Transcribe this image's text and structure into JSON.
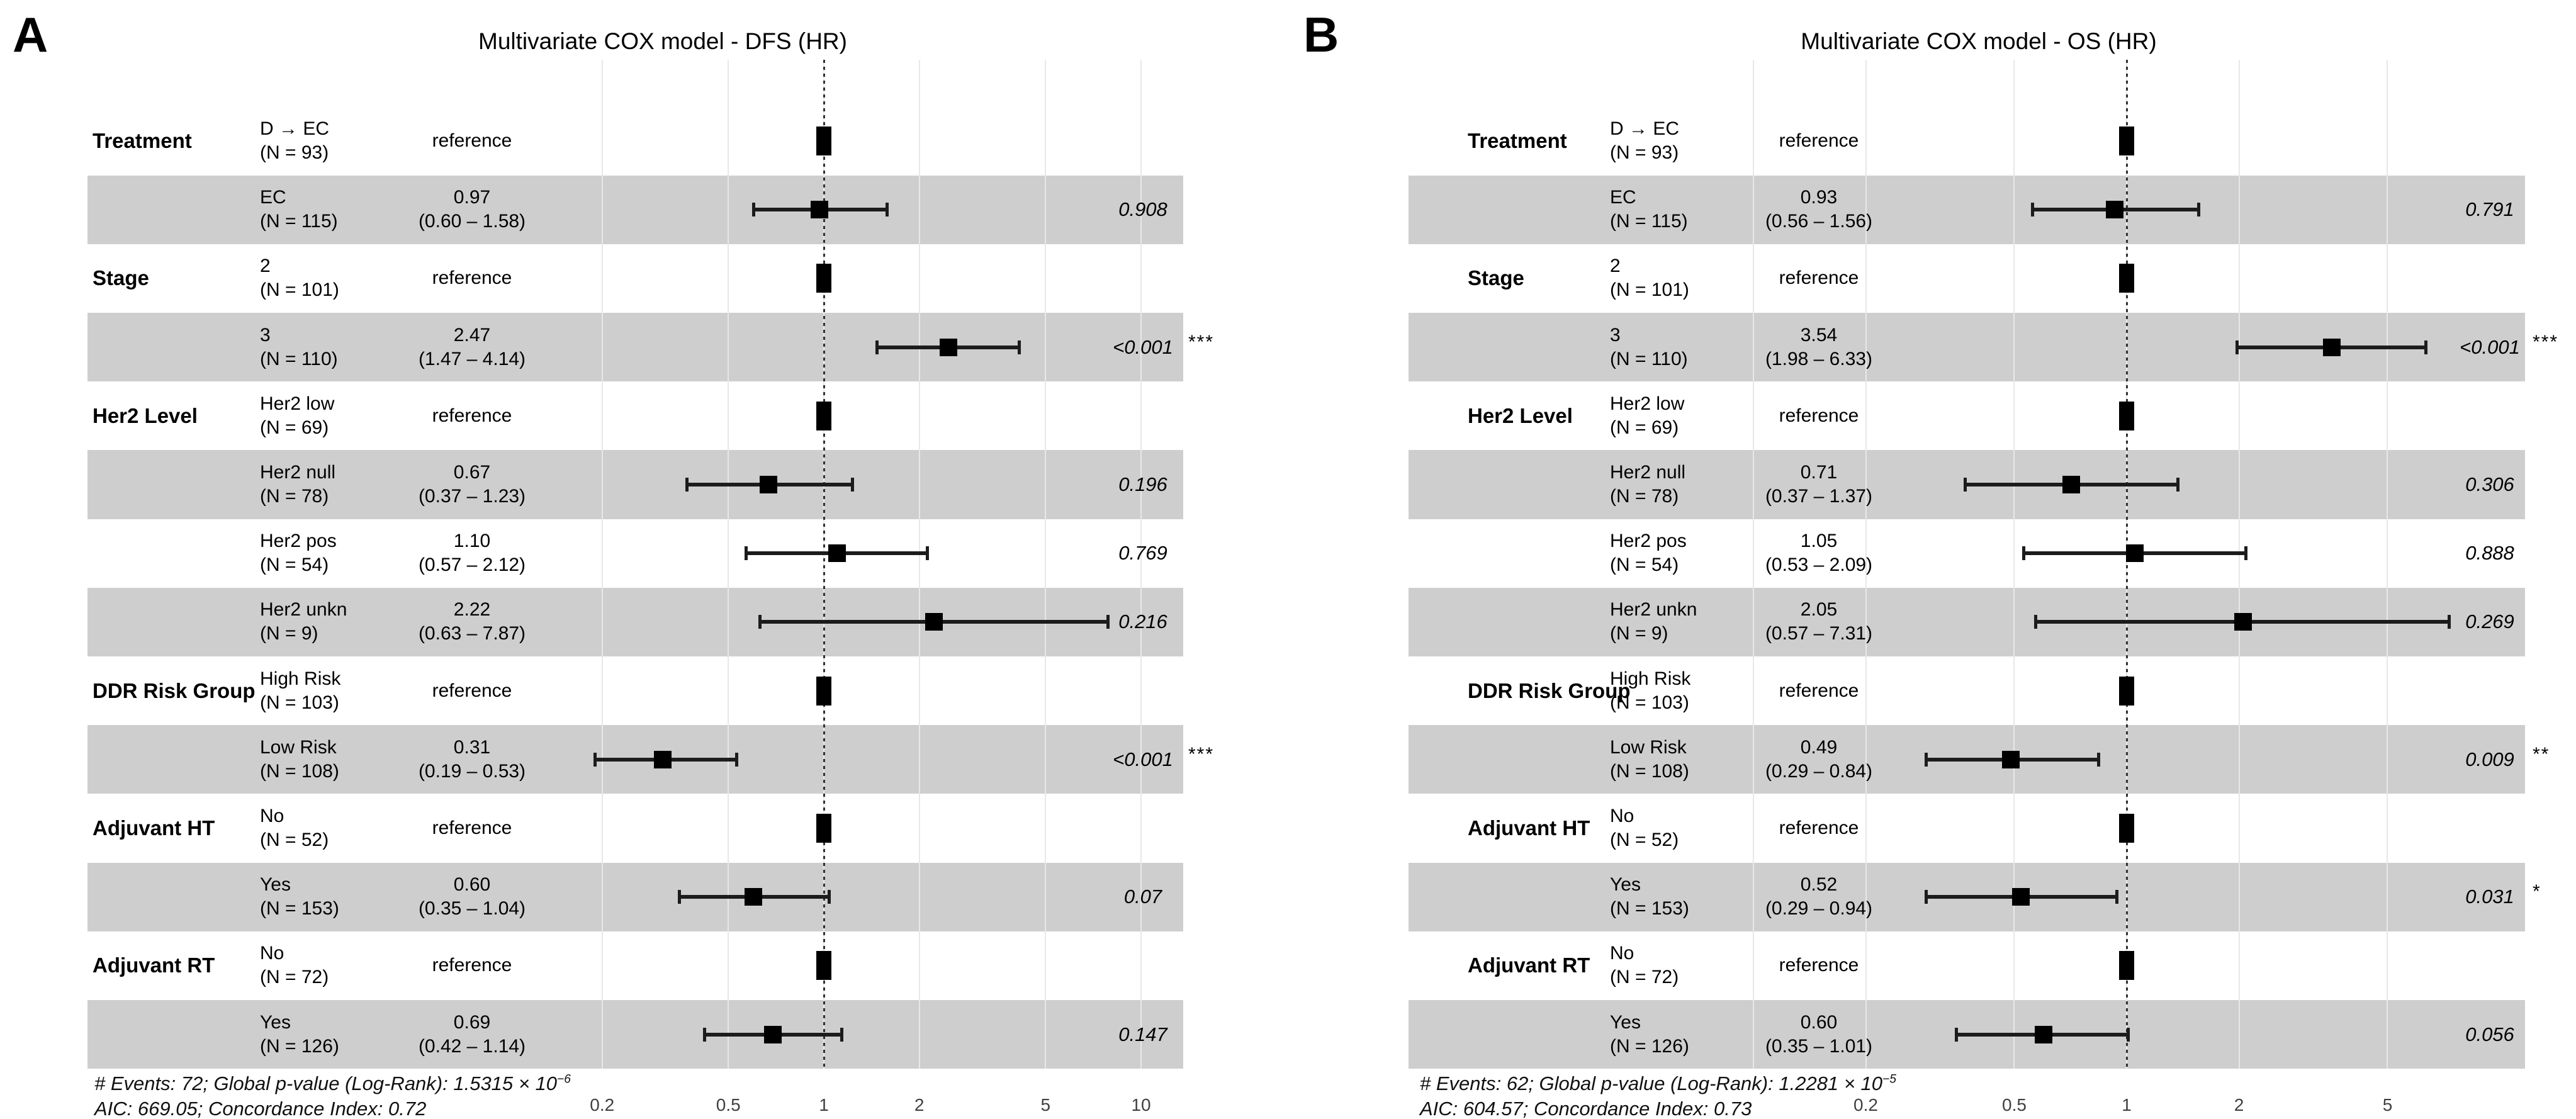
{
  "chart_data": [
    {
      "type": "forest",
      "panel_label": "A",
      "title": "Multivariate COX model - DFS (HR)",
      "x_scale": "log",
      "reference_line": 1,
      "x_ticks": [
        0.2,
        0.5,
        1,
        2,
        5,
        10
      ],
      "unlabeled_gridlines": [],
      "reference_text": "reference",
      "rows": [
        {
          "variable": "Treatment",
          "level": "D → EC",
          "n": "(N = 93)",
          "ref": true,
          "shaded": false
        },
        {
          "variable": "",
          "level": "EC",
          "n": "(N = 115)",
          "est": "0.97",
          "ci": "(0.60 – 1.58)",
          "hr": 0.97,
          "lo": 0.6,
          "hi": 1.58,
          "p": "0.908",
          "stars": "",
          "shaded": true
        },
        {
          "variable": "Stage",
          "level": "2",
          "n": "(N = 101)",
          "ref": true,
          "shaded": false
        },
        {
          "variable": "",
          "level": "3",
          "n": "(N = 110)",
          "est": "2.47",
          "ci": "(1.47 – 4.14)",
          "hr": 2.47,
          "lo": 1.47,
          "hi": 4.14,
          "p": "<0.001",
          "stars": "***",
          "shaded": true
        },
        {
          "variable": "Her2 Level",
          "level": "Her2 low",
          "n": "(N = 69)",
          "ref": true,
          "shaded": false
        },
        {
          "variable": "",
          "level": "Her2 null",
          "n": "(N = 78)",
          "est": "0.67",
          "ci": "(0.37 – 1.23)",
          "hr": 0.67,
          "lo": 0.37,
          "hi": 1.23,
          "p": "0.196",
          "stars": "",
          "shaded": true
        },
        {
          "variable": "",
          "level": "Her2 pos",
          "n": "(N = 54)",
          "est": "1.10",
          "ci": "(0.57 – 2.12)",
          "hr": 1.1,
          "lo": 0.57,
          "hi": 2.12,
          "p": "0.769",
          "stars": "",
          "shaded": false
        },
        {
          "variable": "",
          "level": "Her2 unkn",
          "n": "(N = 9)",
          "est": "2.22",
          "ci": "(0.63 – 7.87)",
          "hr": 2.22,
          "lo": 0.63,
          "hi": 7.87,
          "p": "0.216",
          "stars": "",
          "shaded": true
        },
        {
          "variable": "DDR Risk Group",
          "level": "High Risk",
          "n": "(N = 103)",
          "ref": true,
          "shaded": false
        },
        {
          "variable": "",
          "level": "Low Risk",
          "n": "(N = 108)",
          "est": "0.31",
          "ci": "(0.19 – 0.53)",
          "hr": 0.31,
          "lo": 0.19,
          "hi": 0.53,
          "p": "<0.001",
          "stars": "***",
          "shaded": true
        },
        {
          "variable": "Adjuvant HT",
          "level": "No",
          "n": "(N = 52)",
          "ref": true,
          "shaded": false
        },
        {
          "variable": "",
          "level": "Yes",
          "n": "(N = 153)",
          "est": "0.60",
          "ci": "(0.35 – 1.04)",
          "hr": 0.6,
          "lo": 0.35,
          "hi": 1.04,
          "p": "0.07",
          "stars": "",
          "shaded": true
        },
        {
          "variable": "Adjuvant RT",
          "level": "No",
          "n": "(N = 72)",
          "ref": true,
          "shaded": false
        },
        {
          "variable": "",
          "level": "Yes",
          "n": "(N = 126)",
          "est": "0.69",
          "ci": "(0.42 – 1.14)",
          "hr": 0.69,
          "lo": 0.42,
          "hi": 1.14,
          "p": "0.147",
          "stars": "",
          "shaded": true
        }
      ],
      "footer": {
        "line1_main": "# Events: 72; Global p-value (Log-Rank): 1.5315 × 10",
        "line1_exp": "−6",
        "line2": "AIC: 669.05; Concordance Index: 0.72"
      }
    },
    {
      "type": "forest",
      "panel_label": "B",
      "title": "Multivariate COX model - OS (HR)",
      "x_scale": "log",
      "reference_line": 1,
      "x_ticks": [
        0.2,
        0.5,
        1,
        2,
        5
      ],
      "unlabeled_gridlines": [
        0.1
      ],
      "reference_text": "reference",
      "rows": [
        {
          "variable": "Treatment",
          "level": "D → EC",
          "n": "(N = 93)",
          "ref": true,
          "shaded": false
        },
        {
          "variable": "",
          "level": "EC",
          "n": "(N = 115)",
          "est": "0.93",
          "ci": "(0.56 – 1.56)",
          "hr": 0.93,
          "lo": 0.56,
          "hi": 1.56,
          "p": "0.791",
          "stars": "",
          "shaded": true
        },
        {
          "variable": "Stage",
          "level": "2",
          "n": "(N = 101)",
          "ref": true,
          "shaded": false
        },
        {
          "variable": "",
          "level": "3",
          "n": "(N = 110)",
          "est": "3.54",
          "ci": "(1.98 – 6.33)",
          "hr": 3.54,
          "lo": 1.98,
          "hi": 6.33,
          "p": "<0.001",
          "stars": "***",
          "shaded": true
        },
        {
          "variable": "Her2 Level",
          "level": "Her2 low",
          "n": "(N = 69)",
          "ref": true,
          "shaded": false
        },
        {
          "variable": "",
          "level": "Her2 null",
          "n": "(N = 78)",
          "est": "0.71",
          "ci": "(0.37 – 1.37)",
          "hr": 0.71,
          "lo": 0.37,
          "hi": 1.37,
          "p": "0.306",
          "stars": "",
          "shaded": true
        },
        {
          "variable": "",
          "level": "Her2 pos",
          "n": "(N = 54)",
          "est": "1.05",
          "ci": "(0.53 – 2.09)",
          "hr": 1.05,
          "lo": 0.53,
          "hi": 2.09,
          "p": "0.888",
          "stars": "",
          "shaded": false
        },
        {
          "variable": "",
          "level": "Her2 unkn",
          "n": "(N = 9)",
          "est": "2.05",
          "ci": "(0.57 – 7.31)",
          "hr": 2.05,
          "lo": 0.57,
          "hi": 7.31,
          "p": "0.269",
          "stars": "",
          "shaded": true
        },
        {
          "variable": "DDR Risk Group",
          "level": "High Risk",
          "n": "(N = 103)",
          "ref": true,
          "shaded": false
        },
        {
          "variable": "",
          "level": "Low Risk",
          "n": "(N = 108)",
          "est": "0.49",
          "ci": "(0.29 – 0.84)",
          "hr": 0.49,
          "lo": 0.29,
          "hi": 0.84,
          "p": "0.009",
          "stars": "**",
          "shaded": true
        },
        {
          "variable": "Adjuvant HT",
          "level": "No",
          "n": "(N = 52)",
          "ref": true,
          "shaded": false
        },
        {
          "variable": "",
          "level": "Yes",
          "n": "(N = 153)",
          "est": "0.52",
          "ci": "(0.29 – 0.94)",
          "hr": 0.52,
          "lo": 0.29,
          "hi": 0.94,
          "p": "0.031",
          "stars": "*",
          "shaded": true
        },
        {
          "variable": "Adjuvant RT",
          "level": "No",
          "n": "(N = 72)",
          "ref": true,
          "shaded": false
        },
        {
          "variable": "",
          "level": "Yes",
          "n": "(N = 126)",
          "est": "0.60",
          "ci": "(0.35 – 1.01)",
          "hr": 0.6,
          "lo": 0.35,
          "hi": 1.01,
          "p": "0.056",
          "stars": "",
          "shaded": true
        }
      ],
      "footer": {
        "line1_main": "# Events: 62; Global p-value (Log-Rank): 1.2281 × 10",
        "line1_exp": "−5",
        "line2": "AIC: 604.57; Concordance Index: 0.73"
      }
    }
  ]
}
